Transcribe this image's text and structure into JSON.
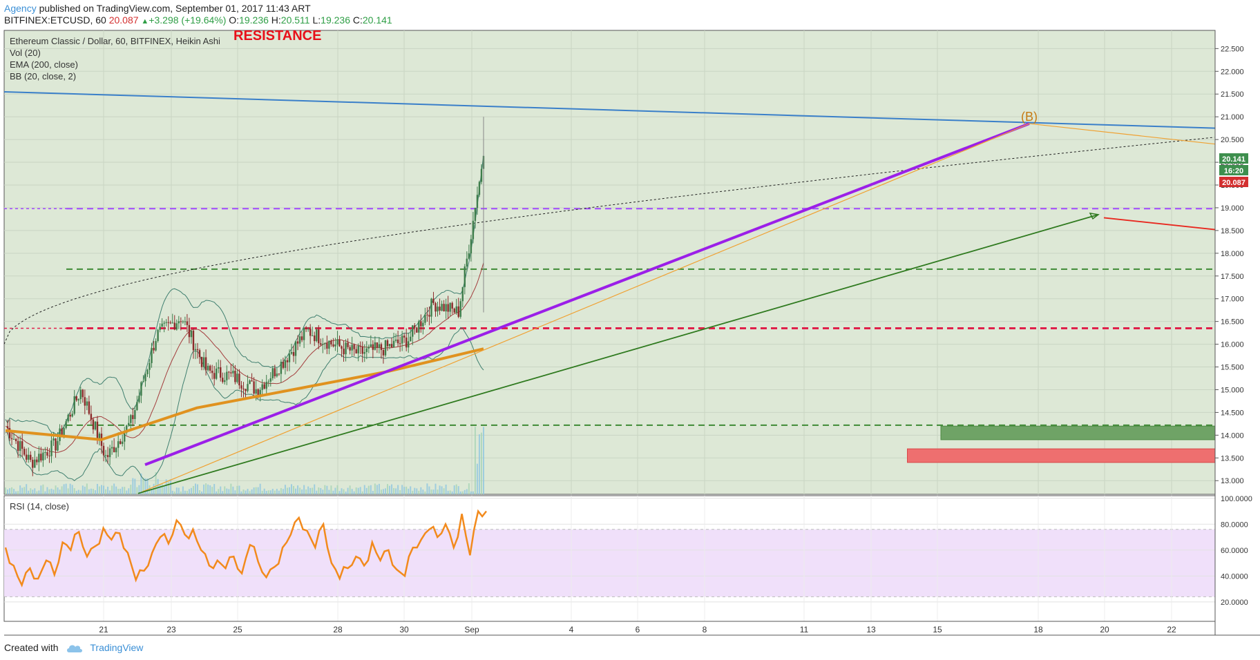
{
  "header": {
    "author": "Agency",
    "published_text": "published on TradingView.com, September 01, 2017 11:43 ART",
    "symbol_line": "BITFINEX:ETCUSD, 60",
    "last_price": "20.087",
    "change": "+3.298 (+19.64%)",
    "open_label": "O:",
    "open_value": "19.236",
    "high_label": "H:",
    "high_value": "20.511",
    "low_label": "L:",
    "low_value": "19.236",
    "close_label": "C:",
    "close_value": "20.141"
  },
  "legend": {
    "title": "Ethereum Classic / Dollar, 60, BITFINEX, Heikin Ashi",
    "vol": "Vol (20)",
    "ema": "EMA (200, close)",
    "bb": "BB (20, close, 2)",
    "rsi": "RSI (14, close)"
  },
  "annotations": {
    "resistance": "RESISTANCE",
    "wave_b": "(B)"
  },
  "price_badges": {
    "close": "20.141",
    "countdown": "16:20",
    "last": "20.087"
  },
  "footer": {
    "created_with": "Created with",
    "brand": "TradingView"
  },
  "colors": {
    "plot_bg": "#dde8d6",
    "candle_up": "#3e7d4b",
    "candle_down": "#8c2a2a",
    "ema": "#e0921f",
    "bb": "#3f7f6f",
    "trendline_blue": "#3a7fc9",
    "trendline_purple": "#9b1fe8",
    "trendline_green": "#2f7a1f",
    "trendline_orange": "#f0a030",
    "projection_red": "#e8281f",
    "rsi_line": "#f28a1c",
    "rsi_band": "#f0e0fa",
    "support_box_green": "#6fa366",
    "support_box_red": "#ee6f6f"
  },
  "chart_data": [
    {
      "type": "candlestick",
      "title": "Ethereum Classic / Dollar, 60, BITFINEX, Heikin Ashi",
      "x_ticks": [
        "21",
        "23",
        "25",
        "28",
        "30",
        "Sep",
        "4",
        "6",
        "8",
        "11",
        "13",
        "15",
        "18",
        "20",
        "22"
      ],
      "y_ticks": [
        "22.500",
        "22.000",
        "21.500",
        "21.000",
        "20.500",
        "20.000",
        "19.500",
        "19.000",
        "18.500",
        "18.000",
        "17.500",
        "17.000",
        "16.500",
        "16.000",
        "15.500",
        "15.000",
        "14.500",
        "14.000",
        "13.500",
        "13.000"
      ],
      "ylim": [
        12.7,
        22.9
      ],
      "grid": true,
      "price_path_approx": [
        [
          "Aug 19",
          14.2
        ],
        [
          "Aug 20",
          13.4
        ],
        [
          "Aug 21",
          13.8
        ],
        [
          "Aug 21.8",
          15.0
        ],
        [
          "Aug 22.2",
          13.5
        ],
        [
          "Aug 22.8",
          14.3
        ],
        [
          "Aug 23.2",
          16.2
        ],
        [
          "Aug 23.6",
          16.6
        ],
        [
          "Aug 24",
          15.4
        ],
        [
          "Aug 25",
          15.3
        ],
        [
          "Aug 26",
          15.0
        ],
        [
          "Aug 27",
          15.6
        ],
        [
          "Aug 27.6",
          16.3
        ],
        [
          "Aug 28",
          16.0
        ],
        [
          "Aug 29",
          15.8
        ],
        [
          "Aug 30",
          15.9
        ],
        [
          "Aug 31",
          16.1
        ],
        [
          "Aug 31.6",
          16.9
        ],
        [
          "Sep 1 early",
          16.7
        ],
        [
          "Sep 1",
          20.14
        ]
      ],
      "ema_200_approx": [
        [
          "Aug 19",
          14.1
        ],
        [
          "Aug 21",
          13.9
        ],
        [
          "Aug 24",
          14.6
        ],
        [
          "Aug 27",
          15.0
        ],
        [
          "Aug 30",
          15.4
        ],
        [
          "Sep 1",
          15.9
        ]
      ],
      "horizontal_levels": [
        {
          "value": 18.98,
          "style": "dashed",
          "color": "purple"
        },
        {
          "value": 17.65,
          "style": "dashed",
          "color": "green"
        },
        {
          "value": 16.35,
          "style": "dashed",
          "color": "crimson"
        },
        {
          "value": 14.22,
          "style": "dashed",
          "color": "green"
        }
      ],
      "trendlines": [
        {
          "name": "blue",
          "from": [
            "Aug 18",
            21.55
          ],
          "to": [
            "Sep 23",
            20.75
          ]
        },
        {
          "name": "purple",
          "from": [
            "Aug 22",
            13.35
          ],
          "to": [
            "Sep 17.8",
            20.85
          ]
        },
        {
          "name": "green",
          "from": [
            "Aug 22",
            12.75
          ],
          "to": [
            "Sep 19.8",
            18.85
          ]
        },
        {
          "name": "projection red",
          "from": [
            "Sep 20",
            18.8
          ],
          "to": [
            "Sep 23",
            18.5
          ]
        }
      ],
      "zones": [
        {
          "color": "green",
          "from_date": "Sep 15",
          "to_date": "Sep 23",
          "y_range": [
            13.9,
            14.2
          ]
        },
        {
          "color": "red",
          "from_date": "Sep 14",
          "to_date": "Sep 23",
          "y_range": [
            13.4,
            13.7
          ]
        }
      ]
    },
    {
      "type": "line",
      "title": "RSI (14, close)",
      "y_ticks": [
        "100.0000",
        "80.0000",
        "60.0000",
        "40.0000",
        "20.0000"
      ],
      "ylim": [
        5,
        102
      ],
      "band": [
        24,
        76
      ],
      "values_approx": [
        62,
        48,
        33,
        46,
        38,
        52,
        41,
        66,
        60,
        74,
        55,
        63,
        77,
        68,
        73,
        58,
        37,
        44,
        58,
        70,
        65,
        83,
        72,
        76,
        60,
        48,
        52,
        46,
        55,
        42,
        64,
        51,
        39,
        47,
        62,
        72,
        85,
        75,
        62,
        80,
        50,
        38,
        46,
        55,
        48,
        66,
        52,
        60,
        45,
        40,
        62,
        68,
        76,
        70,
        80,
        62,
        88,
        56,
        90,
        90
      ]
    }
  ]
}
